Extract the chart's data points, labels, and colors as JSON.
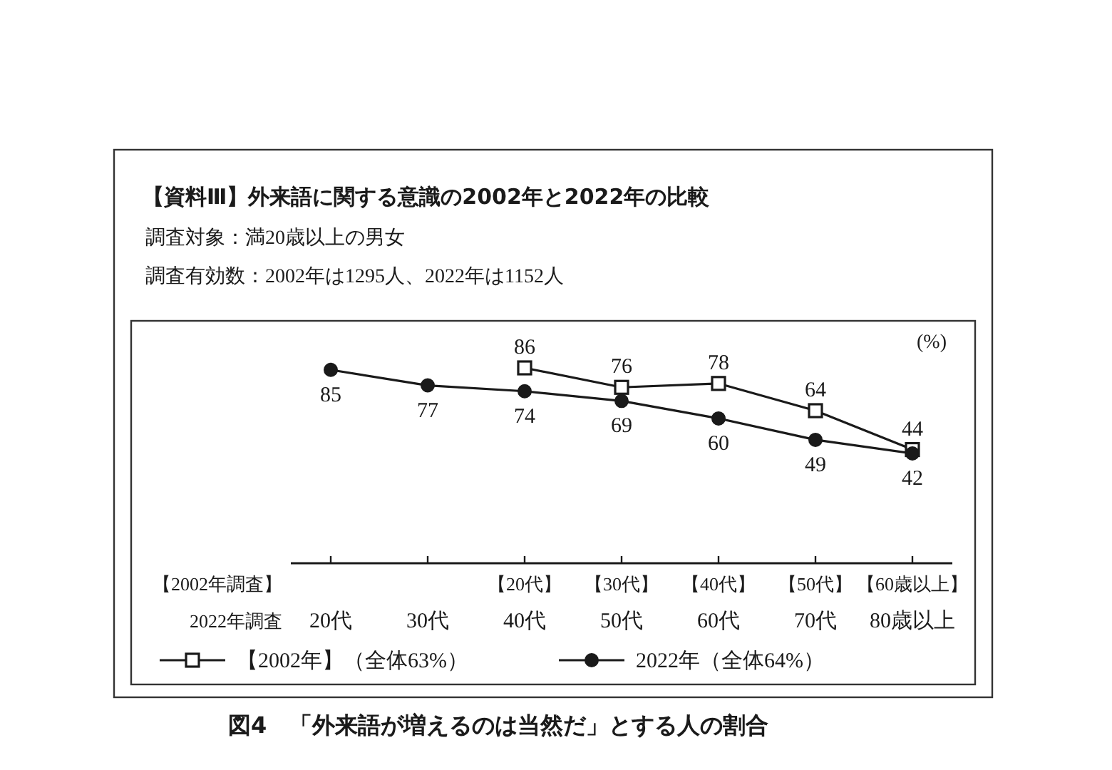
{
  "chart_data": {
    "type": "line",
    "title": "【資料Ⅲ】外来語に関する意識の2002年と2022年の比較",
    "subtitle": "調査対象：満20歳以上の男女",
    "ylabel": "(%)",
    "xlabel": "2022年調査",
    "categories": [
      "20代",
      "30代",
      "40代",
      "50代",
      "60代",
      "70代",
      "80歳以上"
    ],
    "series": [
      {
        "name": "【2002年】（全体63%）",
        "color": "#1a1a1a",
        "marker": "square",
        "values": [
          null,
          null,
          86,
          76,
          78,
          64,
          44
        ]
      },
      {
        "name": "2022年（全体64%）",
        "color": "#1a1a1a",
        "marker": "circle",
        "values": [
          85,
          77,
          74,
          69,
          60,
          49,
          42
        ]
      }
    ],
    "data_labels": true,
    "legend": "bottom",
    "annotations": [
      "調査有効数：2002年は1295人、2022年は1152人",
      "【2002年調査】",
      "【20代】",
      "【30代】",
      "【40代】",
      "【50代】",
      "【60歳以上】",
      "図4　「外来語が増えるのは当然だ」とする人の割合"
    ]
  }
}
